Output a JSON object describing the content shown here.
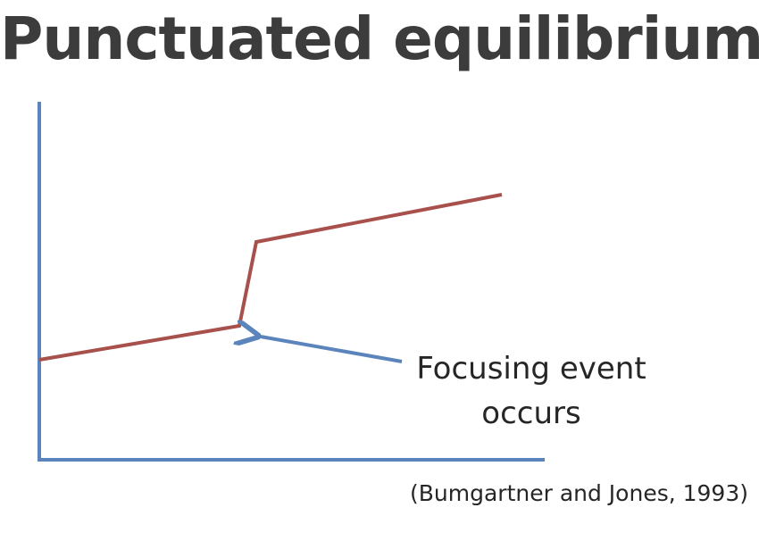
{
  "title": "Punctuated equilibrium",
  "annotation": {
    "line1": "Focusing event",
    "line2": "occurs"
  },
  "citation": "(Bumgartner and Jones, 1993)",
  "colors": {
    "axis": "#5b84bd",
    "trend_line": "#a8504c",
    "arrow": "#5b84bd",
    "title": "#3c3c3c",
    "text": "#262626"
  },
  "icons": {
    "arrow": "arrow-left-icon"
  }
}
